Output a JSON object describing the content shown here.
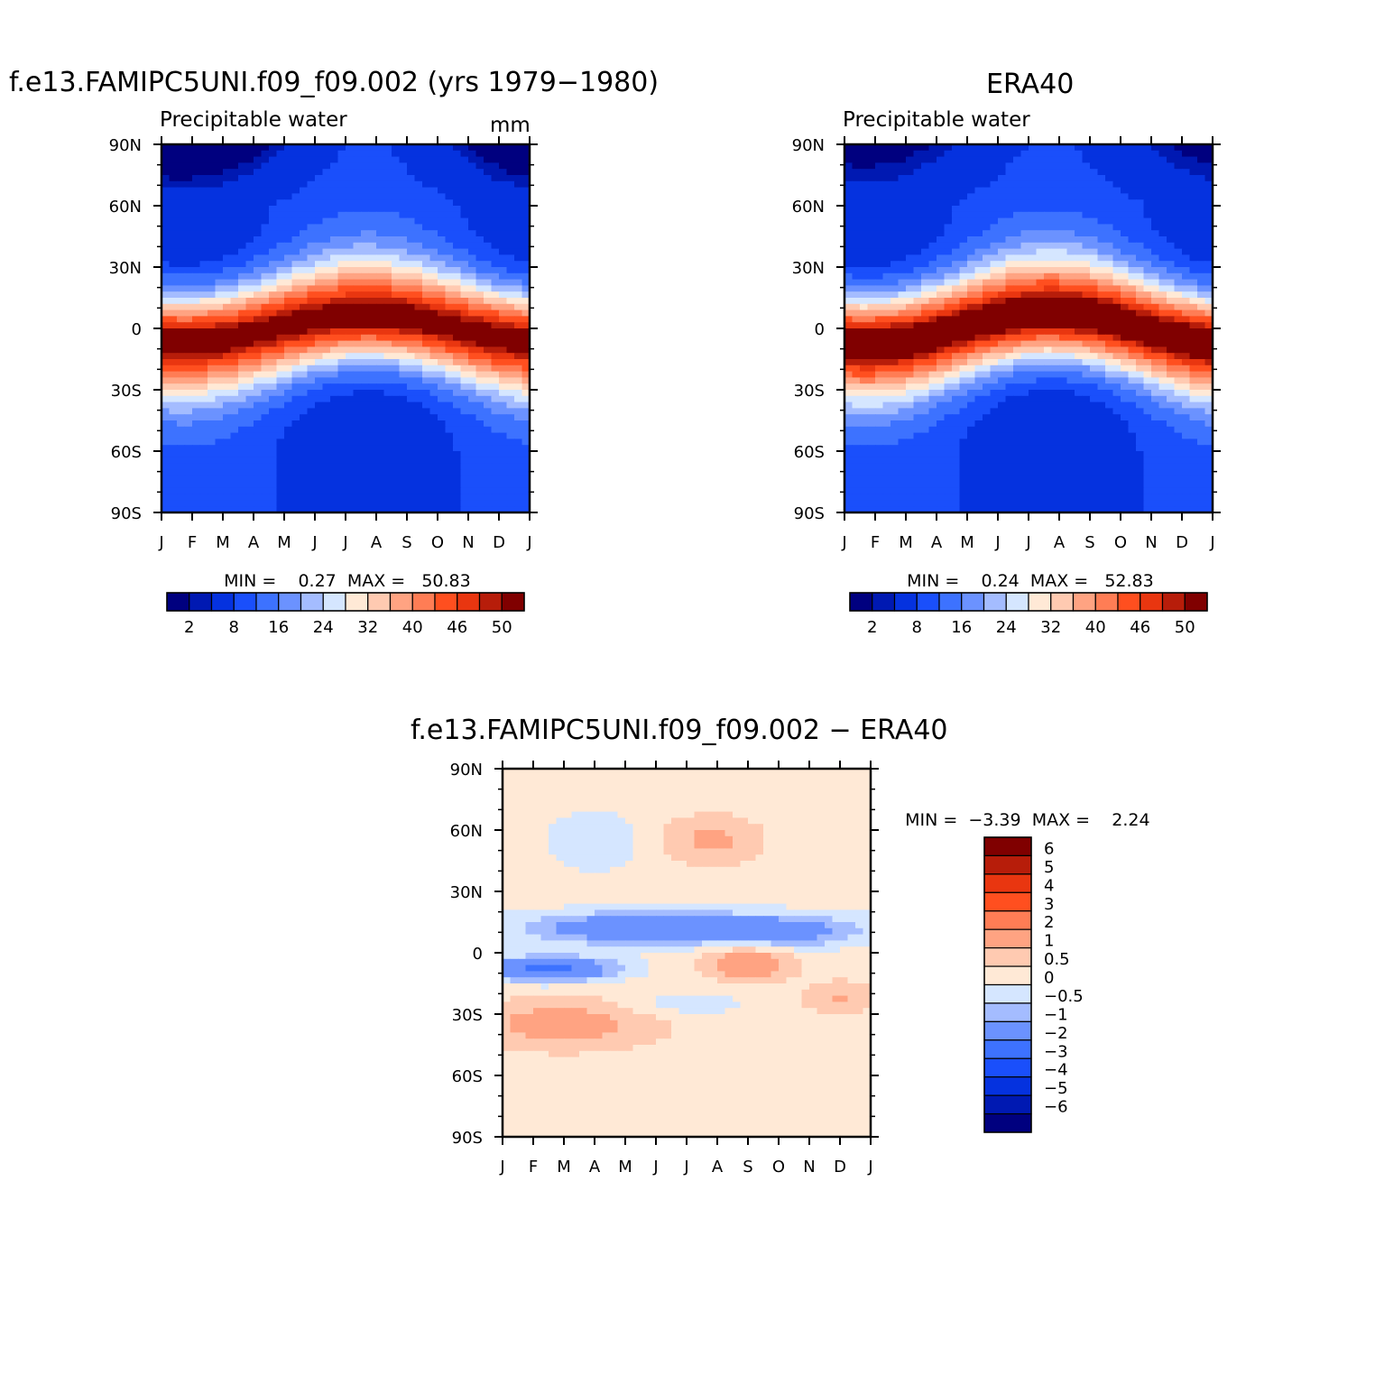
{
  "colors": {
    "seq": [
      "#00007f",
      "#0019b2",
      "#0532df",
      "#1a4ffb",
      "#3d72ff",
      "#6b92ff",
      "#a4bcff",
      "#d5e6ff",
      "#ffe9d6",
      "#ffcab1",
      "#ffa382",
      "#ff7d55",
      "#ff4f1f",
      "#e93610",
      "#b71d0a",
      "#800000"
    ],
    "diff": [
      "#800000",
      "#b71d0a",
      "#e93610",
      "#ff4f1f",
      "#ff7d55",
      "#ffa382",
      "#ffcab1",
      "#ffe9d6",
      "#d5e6ff",
      "#a4bcff",
      "#6b92ff",
      "#3d72ff",
      "#1a4ffb",
      "#0532df",
      "#0019b2",
      "#00007f"
    ]
  },
  "chart_data": [
    {
      "id": "model",
      "type": "heatmap",
      "title": "f.e13.FAMIPC5UNI.f09_f09.002 (yrs 1979−1980)",
      "subtitle": "Precipitable water",
      "units": "mm",
      "x_ticks": [
        "J",
        "F",
        "M",
        "A",
        "M",
        "J",
        "J",
        "A",
        "S",
        "O",
        "N",
        "D",
        "J"
      ],
      "y_ticks": [
        "90N",
        "60N",
        "30N",
        "0",
        "30S",
        "60S",
        "90S"
      ],
      "min_label": "MIN =",
      "min_value": "0.27",
      "max_label": "MAX =",
      "max_value": "50.83",
      "colorbar_labels": [
        "2",
        "8",
        "16",
        "24",
        "32",
        "40",
        "46",
        "50"
      ],
      "colorbar_bins": 16,
      "field": {
        "base": 5,
        "amp": 45,
        "width": 24,
        "itcz_lat": 6,
        "itcz_amp": 8,
        "season_amp": 4,
        "polar_n": 4
      }
    },
    {
      "id": "obs",
      "type": "heatmap",
      "title": "ERA40",
      "subtitle": "Precipitable water",
      "units": "",
      "x_ticks": [
        "J",
        "F",
        "M",
        "A",
        "M",
        "J",
        "J",
        "A",
        "S",
        "O",
        "N",
        "D",
        "J"
      ],
      "y_ticks": [
        "90N",
        "60N",
        "30N",
        "0",
        "30S",
        "60S",
        "90S"
      ],
      "min_label": "MIN =",
      "min_value": "0.24",
      "max_label": "MAX =",
      "max_value": "52.83",
      "colorbar_labels": [
        "2",
        "8",
        "16",
        "24",
        "32",
        "40",
        "46",
        "50"
      ],
      "colorbar_bins": 16,
      "field": {
        "base": 5,
        "amp": 47,
        "width": 24,
        "itcz_lat": 7,
        "itcz_amp": 8,
        "season_amp": 4,
        "polar_n": 3
      }
    },
    {
      "id": "diff",
      "type": "heatmap",
      "title": "f.e13.FAMIPC5UNI.f09_f09.002 − ERA40",
      "x_ticks": [
        "J",
        "F",
        "M",
        "A",
        "M",
        "J",
        "J",
        "A",
        "S",
        "O",
        "N",
        "D",
        "J"
      ],
      "y_ticks": [
        "90N",
        "60N",
        "30N",
        "0",
        "30S",
        "60S",
        "90S"
      ],
      "min_label": "MIN =",
      "min_value": "−3.39",
      "max_label": "MAX =",
      "max_value": "2.24",
      "colorbar_labels": [
        "6",
        "5",
        "4",
        "3",
        "2",
        "1",
        "0.5",
        "0",
        "−0.5",
        "−1",
        "−2",
        "−3",
        "−4",
        "−5",
        "−6"
      ],
      "levels": [
        6,
        5,
        4,
        3,
        2,
        1,
        0.5,
        0,
        -0.5,
        -1,
        -2,
        -3,
        -4,
        -5,
        -6
      ]
    }
  ]
}
